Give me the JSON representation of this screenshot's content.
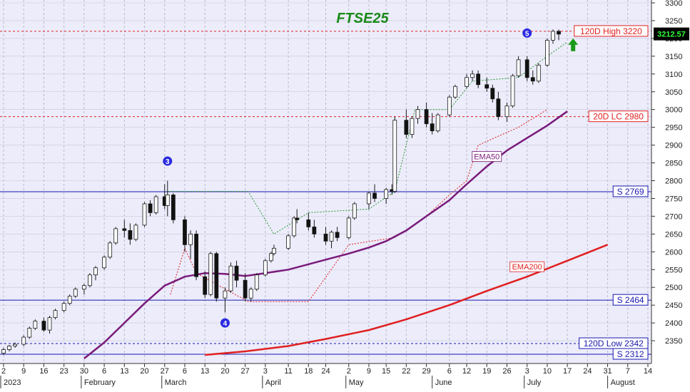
{
  "chart_data": {
    "type": "candlestick",
    "title": "FTSE25",
    "title_color": "#1a8a1a",
    "background_color": "#ececfb",
    "grid": true,
    "last_price": "3212.57",
    "y_axis": {
      "min": 2300,
      "max": 3300,
      "ticks": [
        2350,
        2400,
        2450,
        2500,
        2550,
        2600,
        2650,
        2700,
        2750,
        2800,
        2850,
        2900,
        2950,
        3000,
        3050,
        3100,
        3150,
        3200,
        3250,
        3300
      ]
    },
    "x_axis": {
      "start_date": "2023-01-02",
      "end_date": "2023-08-14",
      "day_ticks": [
        "2",
        "9",
        "16",
        "23",
        "30",
        "6",
        "13",
        "20",
        "27",
        "6",
        "13",
        "20",
        "27",
        "3",
        "11",
        "18",
        "24",
        "2",
        "9",
        "15",
        "22",
        "29",
        "6",
        "12",
        "19",
        "26",
        "3",
        "10",
        "17",
        "24",
        "31",
        "7",
        "14"
      ],
      "day_tick_dates": [
        "2023-01-02",
        "2023-01-09",
        "2023-01-16",
        "2023-01-23",
        "2023-01-30",
        "2023-02-06",
        "2023-02-13",
        "2023-02-20",
        "2023-02-27",
        "2023-03-06",
        "2023-03-13",
        "2023-03-20",
        "2023-03-27",
        "2023-04-03",
        "2023-04-11",
        "2023-04-18",
        "2023-04-24",
        "2023-05-02",
        "2023-05-09",
        "2023-05-15",
        "2023-05-22",
        "2023-05-29",
        "2023-06-06",
        "2023-06-12",
        "2023-06-19",
        "2023-06-26",
        "2023-07-03",
        "2023-07-10",
        "2023-07-17",
        "2023-07-24",
        "2023-07-31",
        "2023-08-07",
        "2023-08-14"
      ],
      "month_labels": [
        {
          "label": "2023",
          "date": "2023-01-02"
        },
        {
          "label": "February",
          "date": "2023-01-30"
        },
        {
          "label": "March",
          "date": "2023-02-27"
        },
        {
          "label": "April",
          "date": "2023-04-03"
        },
        {
          "label": "May",
          "date": "2023-05-02"
        },
        {
          "label": "June",
          "date": "2023-06-01"
        },
        {
          "label": "July",
          "date": "2023-07-03"
        },
        {
          "label": "August",
          "date": "2023-08-01"
        }
      ]
    },
    "hlines": [
      {
        "y": 3220,
        "label": "120D High 3220",
        "color": "#e02020",
        "style": "dotted"
      },
      {
        "y": 2980,
        "label": "20D LC 2980",
        "color": "#e02020",
        "style": "dotted"
      },
      {
        "y": 2769,
        "label": "S 2769",
        "color": "#1818b0",
        "style": "solid"
      },
      {
        "y": 2464,
        "label": "S 2464",
        "color": "#1818b0",
        "style": "solid"
      },
      {
        "y": 2342,
        "label": "120D Low 2342",
        "color": "#1818b0",
        "style": "dotted"
      },
      {
        "y": 2312,
        "label": "S 2312",
        "color": "#1818b0",
        "style": "solid"
      }
    ],
    "wave_labels": [
      {
        "label": "3",
        "date": "2023-02-28",
        "y": 2855
      },
      {
        "label": "4",
        "date": "2023-03-20",
        "y": 2400
      },
      {
        "label": "5",
        "date": "2023-07-03",
        "y": 3215
      }
    ],
    "series": [
      {
        "name": "EMA50",
        "color": "#7a1a7a",
        "points": [
          [
            "2023-01-30",
            2300
          ],
          [
            "2023-02-06",
            2345
          ],
          [
            "2023-02-13",
            2400
          ],
          [
            "2023-02-20",
            2455
          ],
          [
            "2023-02-27",
            2505
          ],
          [
            "2023-03-06",
            2530
          ],
          [
            "2023-03-13",
            2540
          ],
          [
            "2023-03-20",
            2538
          ],
          [
            "2023-03-27",
            2532
          ],
          [
            "2023-04-03",
            2540
          ],
          [
            "2023-04-11",
            2550
          ],
          [
            "2023-04-18",
            2565
          ],
          [
            "2023-04-24",
            2578
          ],
          [
            "2023-05-02",
            2595
          ],
          [
            "2023-05-09",
            2612
          ],
          [
            "2023-05-15",
            2630
          ],
          [
            "2023-05-22",
            2660
          ],
          [
            "2023-05-29",
            2700
          ],
          [
            "2023-06-06",
            2745
          ],
          [
            "2023-06-12",
            2790
          ],
          [
            "2023-06-19",
            2840
          ],
          [
            "2023-06-26",
            2885
          ],
          [
            "2023-07-03",
            2920
          ],
          [
            "2023-07-10",
            2955
          ],
          [
            "2023-07-17",
            2995
          ]
        ]
      },
      {
        "name": "EMA200",
        "color": "#e02020",
        "points": [
          [
            "2023-03-13",
            2310
          ],
          [
            "2023-03-27",
            2320
          ],
          [
            "2023-04-11",
            2335
          ],
          [
            "2023-04-24",
            2355
          ],
          [
            "2023-05-09",
            2380
          ],
          [
            "2023-05-22",
            2410
          ],
          [
            "2023-06-06",
            2450
          ],
          [
            "2023-06-19",
            2490
          ],
          [
            "2023-07-03",
            2530
          ],
          [
            "2023-07-17",
            2575
          ],
          [
            "2023-07-31",
            2620
          ]
        ]
      }
    ],
    "trailing_stop_green": [
      [
        "2023-02-28",
        2770
      ],
      [
        "2023-03-28",
        2770
      ],
      [
        "2023-04-06",
        2650
      ],
      [
        "2023-04-18",
        2710
      ],
      [
        "2023-05-09",
        2720
      ],
      [
        "2023-05-18",
        2770
      ],
      [
        "2023-05-25",
        3000
      ],
      [
        "2023-06-06",
        3000
      ],
      [
        "2023-06-14",
        3080
      ],
      [
        "2023-06-30",
        3090
      ],
      [
        "2023-07-10",
        3150
      ],
      [
        "2023-07-17",
        3190
      ]
    ],
    "trailing_stop_red": [
      [
        "2023-03-01",
        2480
      ],
      [
        "2023-03-06",
        2610
      ],
      [
        "2023-03-10",
        2540
      ],
      [
        "2023-03-28",
        2460
      ],
      [
        "2023-04-18",
        2460
      ],
      [
        "2023-05-02",
        2620
      ],
      [
        "2023-05-18",
        2640
      ],
      [
        "2023-05-22",
        2660
      ],
      [
        "2023-05-29",
        2700
      ],
      [
        "2023-06-06",
        2760
      ],
      [
        "2023-06-12",
        2800
      ],
      [
        "2023-06-16",
        2900
      ],
      [
        "2023-06-30",
        2950
      ],
      [
        "2023-07-10",
        3000
      ]
    ],
    "candles": [
      [
        "2023-01-02",
        2315,
        2330,
        2310,
        2325
      ],
      [
        "2023-01-04",
        2325,
        2338,
        2320,
        2335
      ],
      [
        "2023-01-06",
        2335,
        2345,
        2330,
        2340
      ],
      [
        "2023-01-09",
        2340,
        2365,
        2335,
        2360
      ],
      [
        "2023-01-11",
        2360,
        2390,
        2355,
        2385
      ],
      [
        "2023-01-13",
        2385,
        2410,
        2380,
        2405
      ],
      [
        "2023-01-16",
        2405,
        2415,
        2375,
        2380
      ],
      [
        "2023-01-18",
        2380,
        2420,
        2370,
        2415
      ],
      [
        "2023-01-20",
        2415,
        2440,
        2410,
        2435
      ],
      [
        "2023-01-23",
        2435,
        2460,
        2430,
        2455
      ],
      [
        "2023-01-25",
        2455,
        2480,
        2450,
        2475
      ],
      [
        "2023-01-27",
        2475,
        2500,
        2470,
        2495
      ],
      [
        "2023-01-30",
        2495,
        2510,
        2480,
        2505
      ],
      [
        "2023-02-01",
        2505,
        2540,
        2500,
        2535
      ],
      [
        "2023-02-03",
        2535,
        2560,
        2520,
        2555
      ],
      [
        "2023-02-06",
        2555,
        2590,
        2550,
        2585
      ],
      [
        "2023-02-08",
        2585,
        2630,
        2580,
        2625
      ],
      [
        "2023-02-10",
        2625,
        2670,
        2620,
        2665
      ],
      [
        "2023-02-13",
        2665,
        2690,
        2640,
        2660
      ],
      [
        "2023-02-15",
        2660,
        2680,
        2620,
        2635
      ],
      [
        "2023-02-17",
        2635,
        2680,
        2630,
        2675
      ],
      [
        "2023-02-20",
        2675,
        2740,
        2670,
        2735
      ],
      [
        "2023-02-22",
        2735,
        2745,
        2700,
        2710
      ],
      [
        "2023-02-24",
        2710,
        2760,
        2705,
        2755
      ],
      [
        "2023-02-27",
        2755,
        2790,
        2720,
        2730
      ],
      [
        "2023-02-28",
        2730,
        2800,
        2700,
        2760
      ],
      [
        "2023-03-02",
        2760,
        2765,
        2680,
        2690
      ],
      [
        "2023-03-06",
        2690,
        2700,
        2600,
        2620
      ],
      [
        "2023-03-08",
        2620,
        2660,
        2580,
        2650
      ],
      [
        "2023-03-10",
        2650,
        2660,
        2520,
        2530
      ],
      [
        "2023-03-13",
        2530,
        2545,
        2470,
        2480
      ],
      [
        "2023-03-15",
        2480,
        2600,
        2475,
        2595
      ],
      [
        "2023-03-17",
        2595,
        2600,
        2460,
        2470
      ],
      [
        "2023-03-20",
        2470,
        2500,
        2430,
        2490
      ],
      [
        "2023-03-22",
        2490,
        2570,
        2485,
        2560
      ],
      [
        "2023-03-24",
        2560,
        2575,
        2500,
        2520
      ],
      [
        "2023-03-27",
        2520,
        2540,
        2460,
        2470
      ],
      [
        "2023-03-29",
        2470,
        2500,
        2460,
        2495
      ],
      [
        "2023-03-31",
        2495,
        2540,
        2490,
        2535
      ],
      [
        "2023-04-03",
        2535,
        2580,
        2530,
        2575
      ],
      [
        "2023-04-05",
        2575,
        2600,
        2570,
        2595
      ],
      [
        "2023-04-06",
        2595,
        2620,
        2590,
        2610
      ],
      [
        "2023-04-11",
        2610,
        2650,
        2605,
        2645
      ],
      [
        "2023-04-13",
        2645,
        2700,
        2640,
        2695
      ],
      [
        "2023-04-14",
        2695,
        2720,
        2680,
        2690
      ],
      [
        "2023-04-18",
        2690,
        2710,
        2660,
        2670
      ],
      [
        "2023-04-20",
        2670,
        2690,
        2640,
        2650
      ],
      [
        "2023-04-24",
        2650,
        2670,
        2620,
        2630
      ],
      [
        "2023-04-26",
        2630,
        2660,
        2610,
        2655
      ],
      [
        "2023-04-28",
        2655,
        2670,
        2630,
        2640
      ],
      [
        "2023-05-02",
        2640,
        2700,
        2635,
        2695
      ],
      [
        "2023-05-04",
        2695,
        2740,
        2690,
        2735
      ],
      [
        "2023-05-09",
        2735,
        2770,
        2720,
        2765
      ],
      [
        "2023-05-11",
        2765,
        2790,
        2740,
        2750
      ],
      [
        "2023-05-15",
        2750,
        2780,
        2735,
        2775
      ],
      [
        "2023-05-17",
        2775,
        2790,
        2760,
        2770
      ],
      [
        "2023-05-18",
        2770,
        2980,
        2765,
        2970
      ],
      [
        "2023-05-22",
        2970,
        3000,
        2920,
        2930
      ],
      [
        "2023-05-24",
        2930,
        2980,
        2920,
        2975
      ],
      [
        "2023-05-26",
        2975,
        3010,
        2960,
        3000
      ],
      [
        "2023-05-29",
        3000,
        3020,
        2950,
        2960
      ],
      [
        "2023-05-31",
        2960,
        2990,
        2930,
        2940
      ],
      [
        "2023-06-02",
        2940,
        2990,
        2935,
        2985
      ],
      [
        "2023-06-06",
        2985,
        3040,
        2980,
        3035
      ],
      [
        "2023-06-08",
        3035,
        3070,
        3030,
        3065
      ],
      [
        "2023-06-12",
        3065,
        3100,
        3060,
        3090
      ],
      [
        "2023-06-14",
        3090,
        3110,
        3080,
        3100
      ],
      [
        "2023-06-16",
        3100,
        3110,
        3060,
        3070
      ],
      [
        "2023-06-19",
        3070,
        3090,
        3050,
        3060
      ],
      [
        "2023-06-21",
        3060,
        3070,
        3020,
        3030
      ],
      [
        "2023-06-23",
        3030,
        3050,
        2970,
        2980
      ],
      [
        "2023-06-26",
        2980,
        3020,
        2965,
        3010
      ],
      [
        "2023-06-28",
        3010,
        3100,
        3005,
        3095
      ],
      [
        "2023-06-30",
        3095,
        3150,
        3090,
        3140
      ],
      [
        "2023-07-03",
        3140,
        3150,
        3080,
        3090
      ],
      [
        "2023-07-05",
        3090,
        3110,
        3070,
        3080
      ],
      [
        "2023-07-07",
        3080,
        3130,
        3075,
        3125
      ],
      [
        "2023-07-10",
        3125,
        3200,
        3120,
        3195
      ],
      [
        "2023-07-12",
        3195,
        3225,
        3185,
        3220
      ],
      [
        "2023-07-14",
        3220,
        3225,
        3195,
        3212
      ]
    ]
  }
}
